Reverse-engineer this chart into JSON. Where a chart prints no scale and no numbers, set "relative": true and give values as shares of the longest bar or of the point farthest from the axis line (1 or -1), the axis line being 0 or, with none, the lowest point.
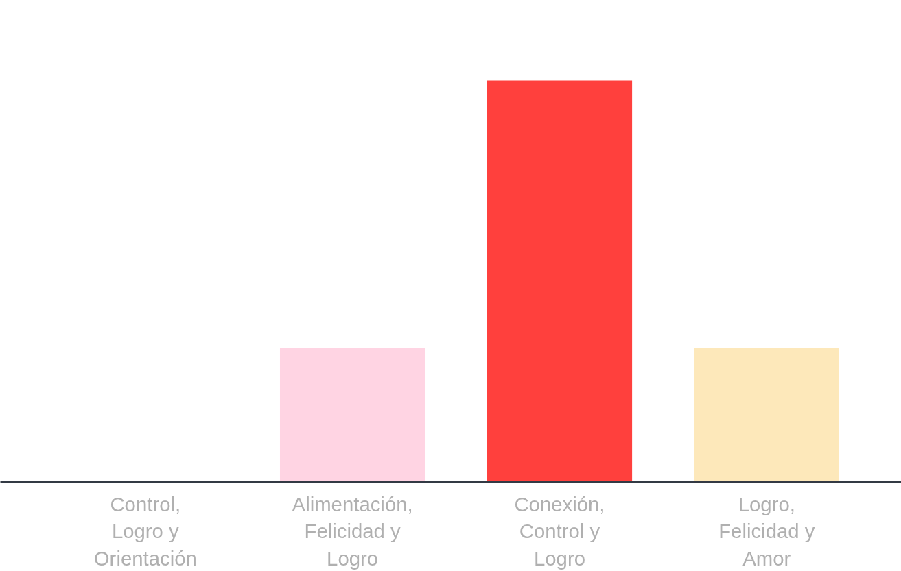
{
  "chart_data": {
    "type": "bar",
    "relative": true,
    "categories": [
      "Control,\nLogro y\nOrientación",
      "Alimentación,\nFelicidad y\nLogro",
      "Conexión,\nControl y\nLogro",
      "Logro,\nFelicidad y\nAmor"
    ],
    "values": [
      0,
      0.334,
      1,
      0.334
    ],
    "colors": [
      "#ffd4e3",
      "#ffd4e3",
      "#ff403d",
      "#fde8ba"
    ],
    "grid": false
  }
}
